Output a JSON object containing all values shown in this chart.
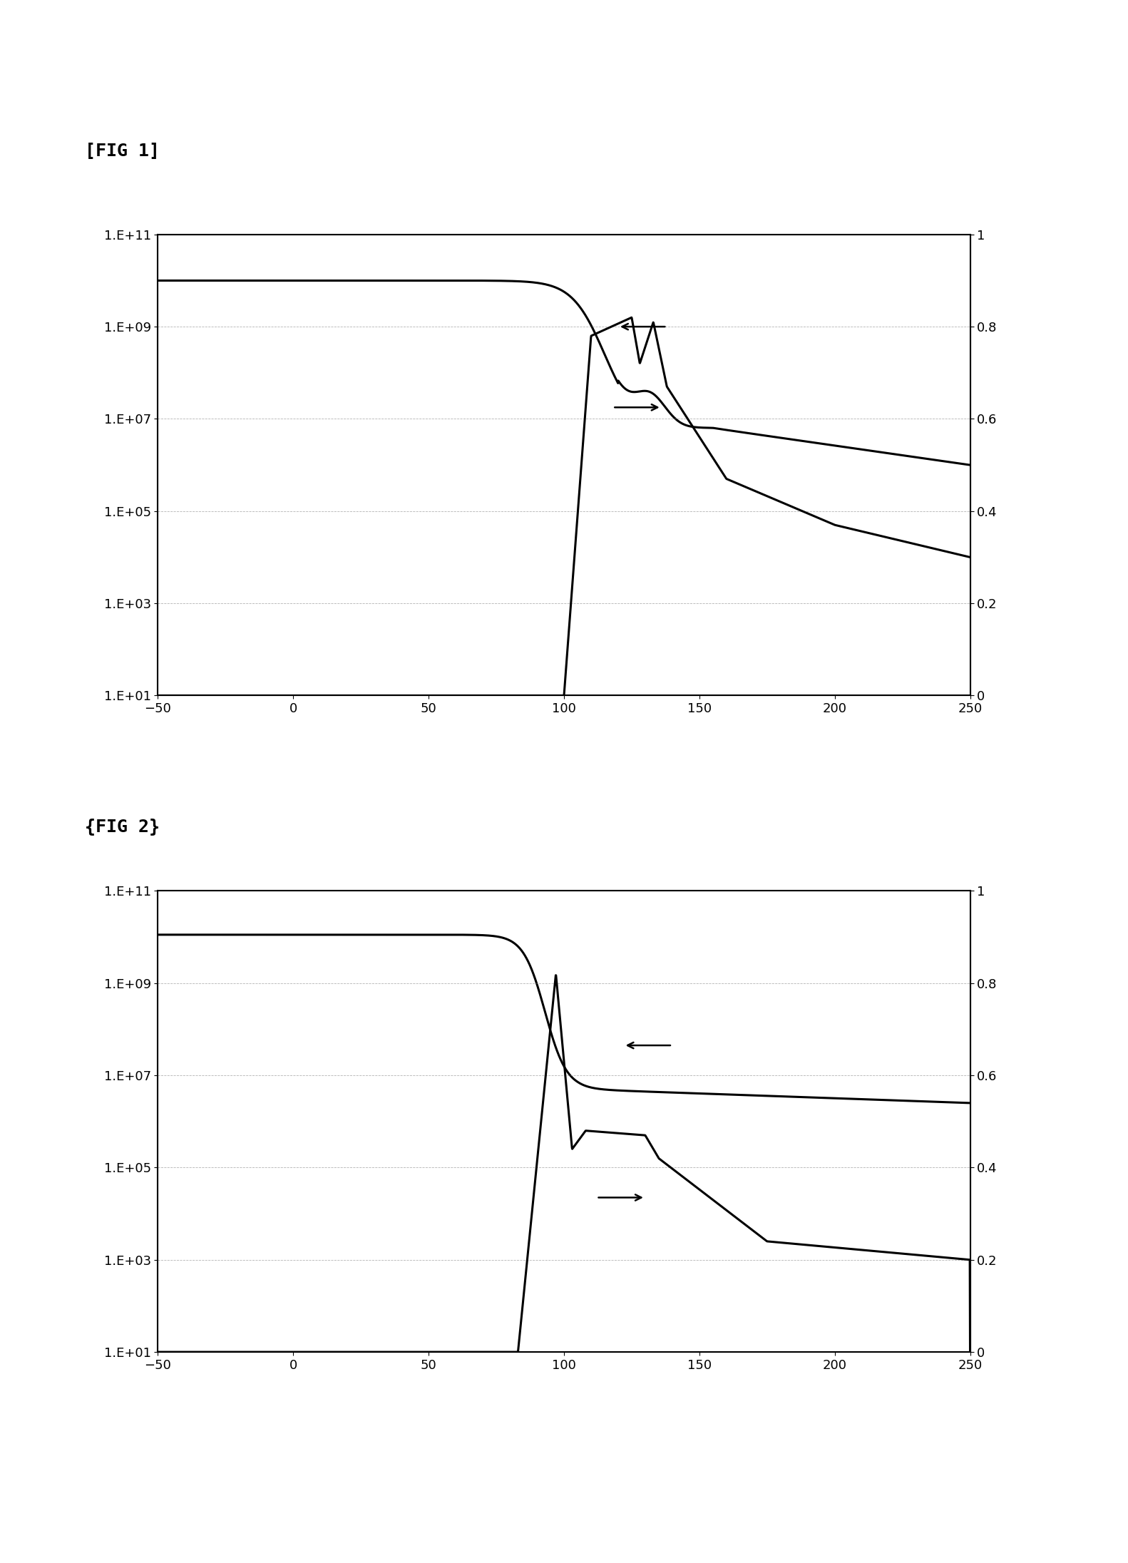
{
  "fig1_label": "[FIG 1]",
  "fig2_label": "{FIG 2}",
  "xlim": [
    -50,
    250
  ],
  "xticks": [
    -50,
    0,
    50,
    100,
    150,
    200,
    250
  ],
  "left_yticks_log": [
    10.0,
    1000.0,
    100000.0,
    10000000.0,
    1000000000.0,
    100000000000.0
  ],
  "left_yticklabels": [
    "1.E+01",
    "1.E+03",
    "1.E+05",
    "1.E+07",
    "1.E+09",
    "1.E+11"
  ],
  "right_yticks": [
    0,
    0.2,
    0.4,
    0.6,
    0.8,
    1.0
  ],
  "right_yticklabels": [
    "0",
    "0.2",
    "0.4",
    "0.6",
    "0.8",
    "1"
  ],
  "background_color": "#ffffff",
  "line_color": "#000000",
  "tick_fontsize": 13,
  "label_fontsize": 18,
  "linewidth": 2.2
}
